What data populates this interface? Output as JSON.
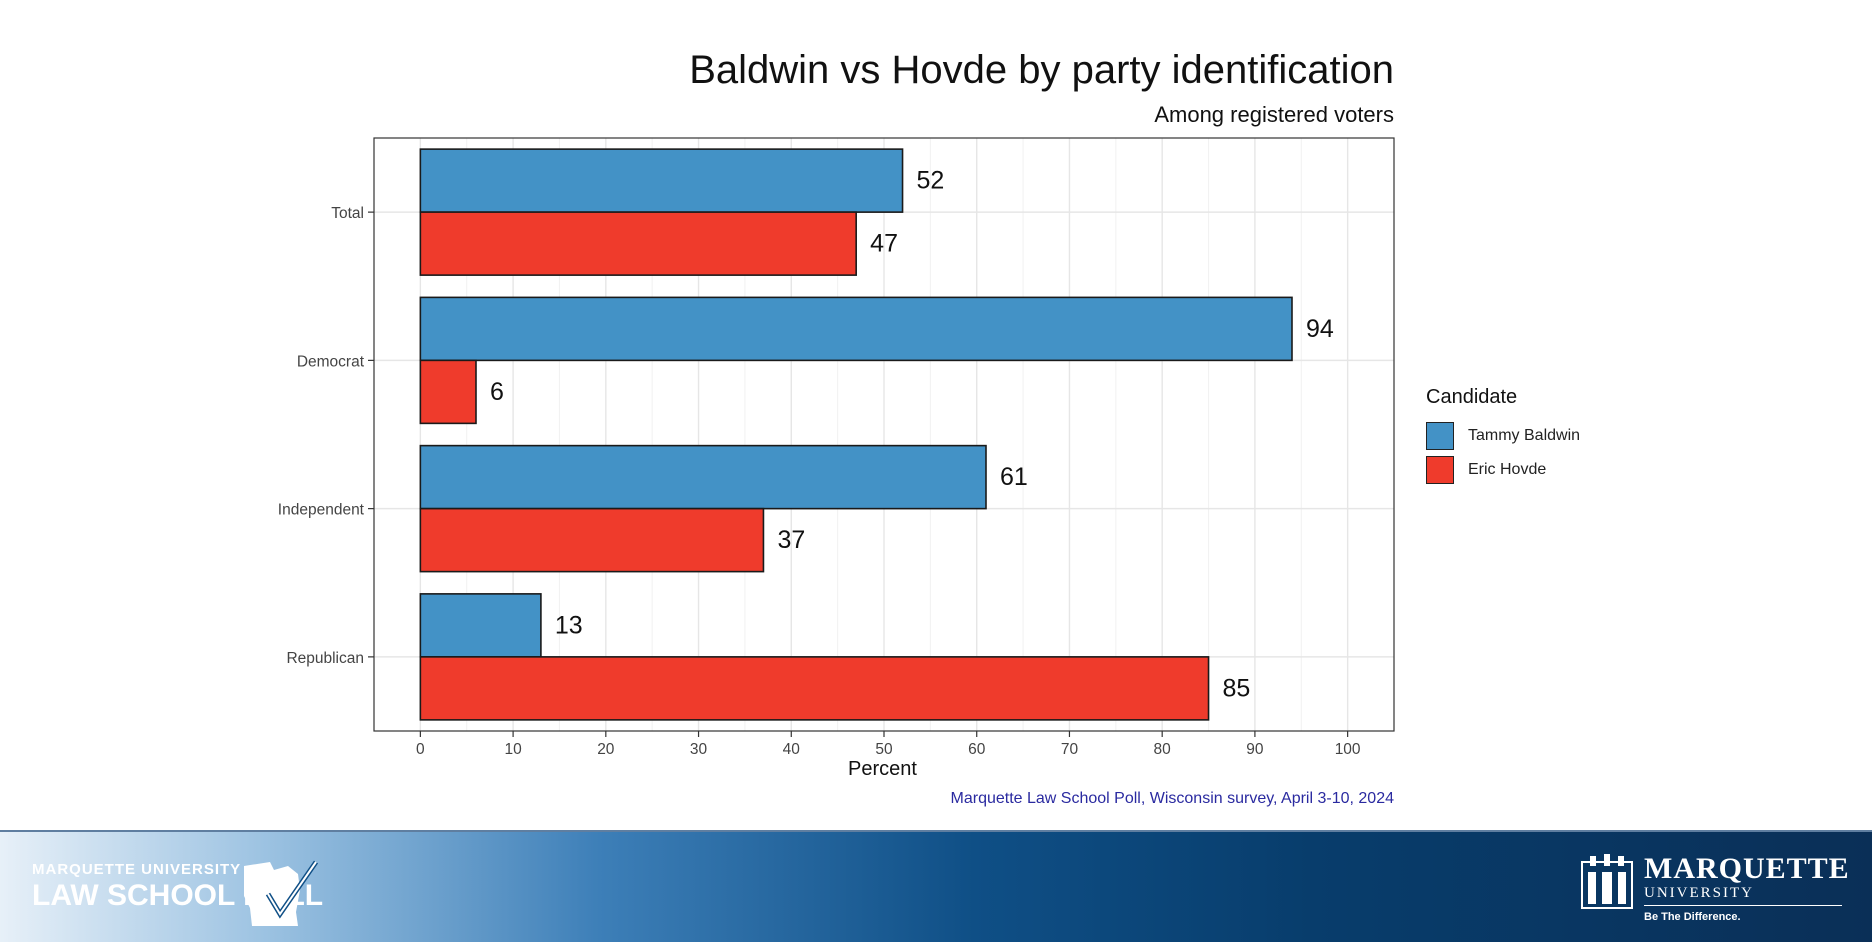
{
  "chart_data": {
    "type": "bar",
    "orientation": "horizontal",
    "title": "Baldwin vs Hovde by party identification",
    "subtitle": "Among registered voters",
    "categories": [
      "Total",
      "Democrat",
      "Independent",
      "Republican"
    ],
    "series": [
      {
        "name": "Tammy Baldwin",
        "values": [
          52,
          94,
          61,
          13
        ],
        "color": "#4392c6"
      },
      {
        "name": "Eric Hovde",
        "values": [
          47,
          6,
          37,
          85
        ],
        "color": "#ef3b2c"
      }
    ],
    "xlabel": "Percent",
    "ylabel": "",
    "xlim": [
      -5,
      105
    ],
    "xticks": [
      0,
      10,
      20,
      30,
      40,
      50,
      60,
      70,
      80,
      90,
      100
    ],
    "grid": true,
    "data_labels": true,
    "legend_title": "Candidate",
    "legend_position": "right",
    "source": "Marquette Law School Poll, Wisconsin survey, April 3-10, 2024"
  },
  "footer": {
    "poll_logo_line1": "MARQUETTE UNIVERSITY",
    "poll_logo_line2": "LAW SCHOOL POLL",
    "mu_name": "MARQUETTE",
    "mu_sub": "UNIVERSITY",
    "mu_tagline": "Be The Difference."
  }
}
